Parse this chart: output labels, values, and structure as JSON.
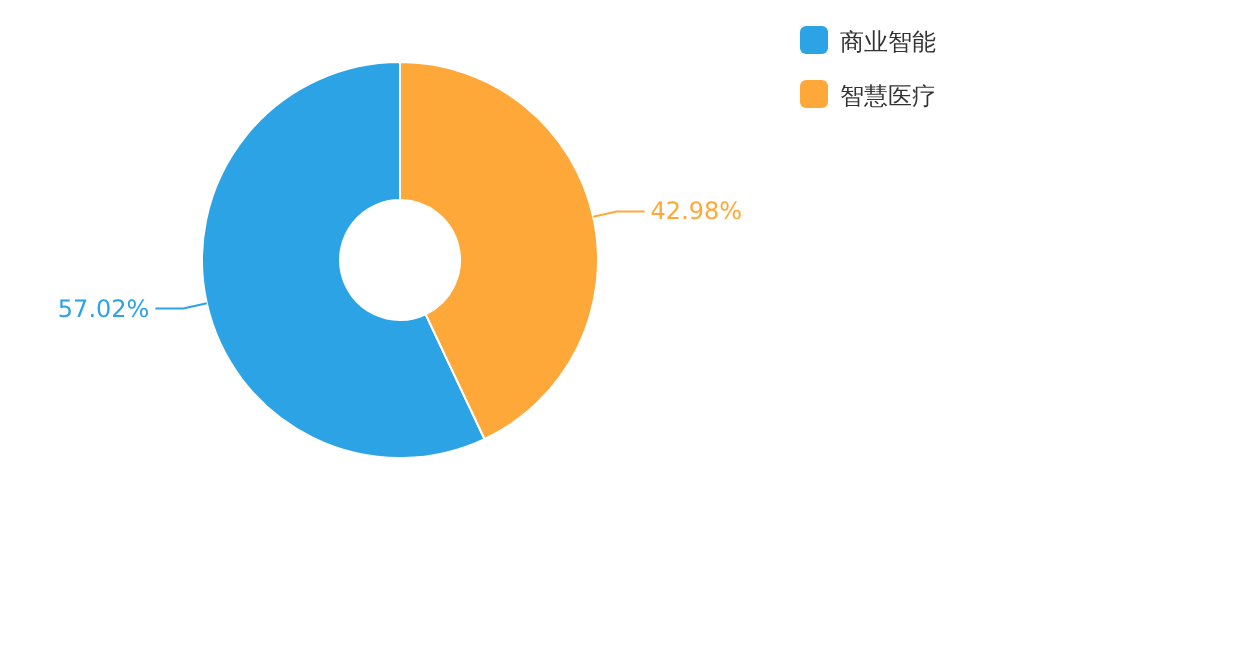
{
  "chart_data": {
    "type": "donut",
    "categories": [
      "商业智能",
      "智慧医疗"
    ],
    "values": [
      57.02,
      42.98
    ],
    "colors": [
      "#2ca3e4",
      "#ffa83a"
    ],
    "value_labels": [
      "57.02%",
      "42.98%"
    ],
    "legend": "top right"
  }
}
